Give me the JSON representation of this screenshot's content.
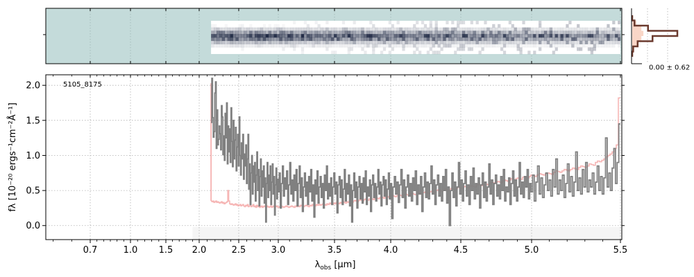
{
  "chart_data": {
    "type": "line",
    "object_id": "5105_8175",
    "xlabel": "λobs [μm]",
    "xlabel_main": "λ",
    "xlabel_sub": "obs",
    "xlabel_unit": " [μm]",
    "ylabel": "fλ [10⁻²⁰ ergs⁻¹cm⁻²Å⁻¹]",
    "xlim": [
      0.58,
      5.52
    ],
    "ylim": [
      -0.2,
      2.15
    ],
    "x_scale": "nonlinear (wavelength-warped)",
    "x_ticks": [
      "0.7",
      "1.0",
      "1.5",
      "2.0",
      "2.5",
      "3.0",
      "3.5",
      "4.0",
      "4.5",
      "5.0",
      "5.5"
    ],
    "y_ticks": [
      "0.0",
      "0.5",
      "1.0",
      "1.5",
      "2.0"
    ],
    "grid": true,
    "colors": {
      "flux": "#808080",
      "error": "#f4a9a8",
      "profile": "#6b3a2e",
      "profile_fill": "#f7c8b4",
      "twod_background": "#c4dbda"
    },
    "series": [
      {
        "role": "flux",
        "x_start": 2.15,
        "x_end": 5.5,
        "y": [
          1.47,
          2.1,
          1.54,
          1.26,
          1.34,
          1.89,
          2.05,
          1.1,
          1.65,
          1.15,
          1.23,
          1.42,
          1.31,
          1.08,
          1.71,
          1.55,
          1.01,
          1.28,
          0.93,
          1.6,
          1.25,
          1.75,
          0.88,
          1.42,
          1.05,
          1.38,
          0.9,
          1.68,
          1.2,
          0.84,
          1.5,
          0.95,
          1.22,
          1.4,
          0.78,
          1.12,
          1.3,
          0.85,
          1.55,
          1.0,
          0.72,
          1.18,
          0.95,
          1.3,
          0.66,
          1.02,
          0.85,
          1.15,
          0.6,
          0.95,
          1.3,
          0.52,
          0.88,
          0.3,
          0.75,
          1.0,
          0.45,
          0.85,
          0.62,
          0.9,
          0.35,
          0.72,
          1.05,
          0.5,
          0.8,
          0.28,
          0.7,
          0.95,
          0.42,
          0.78,
          0.55,
          0.85,
          0.32,
          0.68,
          0.05,
          0.6,
          0.9,
          0.4,
          0.72,
          0.5,
          0.85,
          0.3,
          0.62,
          0.88,
          0.45,
          0.7,
          0.15,
          0.58,
          0.82,
          0.38,
          0.66,
          0.48,
          0.75,
          0.25,
          0.6,
          0.85,
          0.42,
          0.68,
          0.52,
          0.78,
          0.3,
          0.58,
          0.9,
          0.45,
          0.65,
          0.35,
          0.72,
          0.5,
          0.8,
          0.28,
          0.6,
          0.85,
          0.4,
          0.68,
          0.2,
          0.55,
          0.75,
          0.42,
          0.62,
          0.3,
          0.7,
          0.48,
          0.8,
          0.35,
          0.58,
          0.12,
          0.65,
          0.45,
          0.78,
          0.32,
          0.55,
          0.7,
          0.4,
          0.6,
          0.25,
          0.72,
          0.5,
          0.85,
          0.38,
          0.6,
          0.42,
          0.68,
          0.3,
          0.55,
          0.75,
          0.45,
          0.62,
          0.18,
          0.58,
          0.7,
          0.4,
          0.65,
          0.3,
          0.52,
          0.8,
          0.35,
          0.6,
          0.45,
          0.72,
          0.28,
          0.58,
          0.05,
          0.5,
          0.75,
          0.4,
          0.62,
          0.25,
          0.55,
          0.7,
          0.38,
          0.6,
          0.32,
          0.68,
          0.48,
          0.78,
          0.3,
          0.55,
          0.42,
          0.65,
          0.2,
          0.58,
          0.72,
          0.4,
          0.6,
          0.35,
          0.55,
          0.8,
          0.45,
          0.62,
          0.28,
          0.58,
          0.7,
          0.42,
          0.65,
          0.3,
          0.52,
          0.75,
          0.38,
          0.6,
          0.1,
          0.55,
          0.7,
          0.45,
          0.62,
          0.33,
          0.58,
          0.8,
          0.4,
          0.65,
          0.25,
          0.55,
          0.72,
          0.42,
          0.6,
          0.35,
          0.68,
          0.5,
          0.78,
          0.3,
          0.58,
          0.45,
          0.7,
          0.2,
          0.55,
          0.75,
          0.4,
          0.62,
          0.38,
          0.6,
          0.85,
          0.45,
          0.65,
          0.3,
          0.58,
          0.72,
          0.42,
          0.6,
          0.35,
          0.7,
          0.5,
          0.8,
          0.32,
          0.55,
          0.0,
          0.5,
          0.75,
          0.4,
          0.62,
          0.28,
          0.55,
          0.9,
          0.45,
          0.65,
          0.35,
          0.6,
          0.78,
          0.42,
          0.58,
          0.3,
          0.7,
          0.5,
          0.82,
          0.38,
          0.6,
          0.45,
          0.68,
          0.25,
          0.58,
          0.75,
          0.4,
          0.62,
          0.35,
          0.55,
          0.88,
          0.45,
          0.65,
          0.3,
          0.6,
          0.72,
          0.42,
          0.58,
          0.38,
          0.7,
          0.5,
          0.8,
          0.35,
          0.55,
          0.48,
          0.68,
          0.3,
          0.6,
          0.78,
          0.42,
          0.65,
          0.35,
          0.55,
          0.9,
          0.45,
          0.62,
          0.4,
          0.7,
          0.55,
          0.8,
          0.38,
          0.6,
          0.48,
          0.72,
          0.35,
          0.62,
          0.85,
          0.45,
          0.68,
          0.4,
          0.58,
          0.75,
          0.5,
          0.65,
          0.42,
          0.8,
          0.55,
          0.95,
          0.45,
          0.65,
          0.5,
          0.72,
          0.4,
          0.6,
          0.88,
          0.48,
          0.7,
          0.42,
          0.62,
          1.05,
          0.5,
          0.68,
          0.45,
          0.8,
          0.55,
          0.9,
          0.48,
          0.65,
          0.55,
          0.75,
          0.45,
          0.62,
          0.85,
          0.5,
          0.7,
          0.45,
          0.68,
          1.25,
          0.55,
          0.75,
          0.5,
          0.82,
          1.1,
          0.6,
          0.9,
          1.45
        ]
      },
      {
        "role": "error",
        "x_start": 2.15,
        "x_end": 5.5,
        "y": [
          0.35,
          0.34,
          0.35,
          0.33,
          0.34,
          0.35,
          0.33,
          0.34,
          0.33,
          0.32,
          0.33,
          0.34,
          0.32,
          0.33,
          0.31,
          0.32,
          0.33,
          0.34,
          0.5,
          0.35,
          0.31,
          0.3,
          0.31,
          0.3,
          0.29,
          0.3,
          0.31,
          0.29,
          0.3,
          0.28,
          0.29,
          0.3,
          0.28,
          0.29,
          0.3,
          0.28,
          0.27,
          0.29,
          0.28,
          0.3,
          0.27,
          0.28,
          0.29,
          0.27,
          0.28,
          0.3,
          0.27,
          0.28,
          0.26,
          0.29,
          0.27,
          0.28,
          0.26,
          0.27,
          0.28,
          0.26,
          0.27,
          0.28,
          0.27,
          0.26,
          0.28,
          0.27,
          0.26,
          0.27,
          0.28,
          0.26,
          0.27,
          0.28,
          0.26,
          0.27,
          0.28,
          0.27,
          0.26,
          0.27,
          0.28,
          0.27,
          0.26,
          0.27,
          0.28,
          0.27,
          0.26,
          0.27,
          0.28,
          0.27,
          0.26,
          0.28,
          0.27,
          0.28,
          0.27,
          0.29,
          0.28,
          0.27,
          0.28,
          0.29,
          0.28,
          0.27,
          0.29,
          0.28,
          0.3,
          0.29,
          0.28,
          0.3,
          0.29,
          0.3,
          0.29,
          0.3,
          0.31,
          0.3,
          0.29,
          0.31,
          0.3,
          0.32,
          0.31,
          0.3,
          0.32,
          0.31,
          0.33,
          0.32,
          0.31,
          0.33,
          0.32,
          0.34,
          0.33,
          0.32,
          0.34,
          0.33,
          0.35,
          0.34,
          0.33,
          0.35,
          0.36,
          0.35,
          0.34,
          0.36,
          0.37,
          0.36,
          0.35,
          0.37,
          0.38,
          0.37,
          0.36,
          0.38,
          0.39,
          0.38,
          0.37,
          0.39,
          0.4,
          0.39,
          0.38,
          0.4,
          0.41,
          0.4,
          0.39,
          0.41,
          0.42,
          0.41,
          0.4,
          0.42,
          0.43,
          0.42,
          0.41,
          0.43,
          0.44,
          0.43,
          0.42,
          0.44,
          0.45,
          0.44,
          0.43,
          0.45,
          0.46,
          0.45,
          0.44,
          0.46,
          0.47,
          0.46,
          0.45,
          0.47,
          0.48,
          0.47,
          0.46,
          0.48,
          0.49,
          0.48,
          0.47,
          0.5,
          0.51,
          0.5,
          0.49,
          0.51,
          0.52,
          0.51,
          0.5,
          0.52,
          0.53,
          0.52,
          0.51,
          0.53,
          0.55,
          0.54,
          0.53,
          0.55,
          0.56,
          0.55,
          0.54,
          0.56,
          0.57,
          0.56,
          0.55,
          0.58,
          0.59,
          0.58,
          0.57,
          0.59,
          0.6,
          0.59,
          0.58,
          0.6,
          0.62,
          0.61,
          0.6,
          0.62,
          0.63,
          0.62,
          0.61,
          0.64,
          0.65,
          0.64,
          0.63,
          0.65,
          0.67,
          0.66,
          0.65,
          0.67,
          0.68,
          0.67,
          0.66,
          0.69,
          0.7,
          0.69,
          0.68,
          0.7,
          0.72,
          0.71,
          0.7,
          0.72,
          0.74,
          0.73,
          0.72,
          0.74,
          0.75,
          0.74,
          0.73,
          0.76,
          0.78,
          0.77,
          0.76,
          0.78,
          0.8,
          0.79,
          0.78,
          0.8,
          0.82,
          0.81,
          0.8,
          0.83,
          0.85,
          0.84,
          0.83,
          0.85,
          0.88,
          0.87,
          0.86,
          0.9,
          0.92,
          0.91,
          0.93,
          0.95,
          0.98,
          1.0,
          1.02,
          1.05,
          1.1,
          1.15,
          1.82
        ]
      }
    ],
    "twod_panel": {
      "trace_x_start": 2.15,
      "trace_x_end": 5.5,
      "rows": [
        0.0,
        0.05,
        0.25,
        0.6,
        1.0,
        0.75,
        0.35,
        0.12,
        0.04,
        0.0
      ]
    },
    "profile_panel": {
      "label": "0.00 ± 0.62",
      "profile": [
        0.0,
        0.05,
        0.35,
        1.0,
        0.45,
        0.12,
        0.02,
        0.0
      ],
      "fill_profile": [
        0.0,
        0.2,
        0.45,
        0.55,
        0.45,
        0.25,
        0.1,
        0.0
      ]
    }
  }
}
